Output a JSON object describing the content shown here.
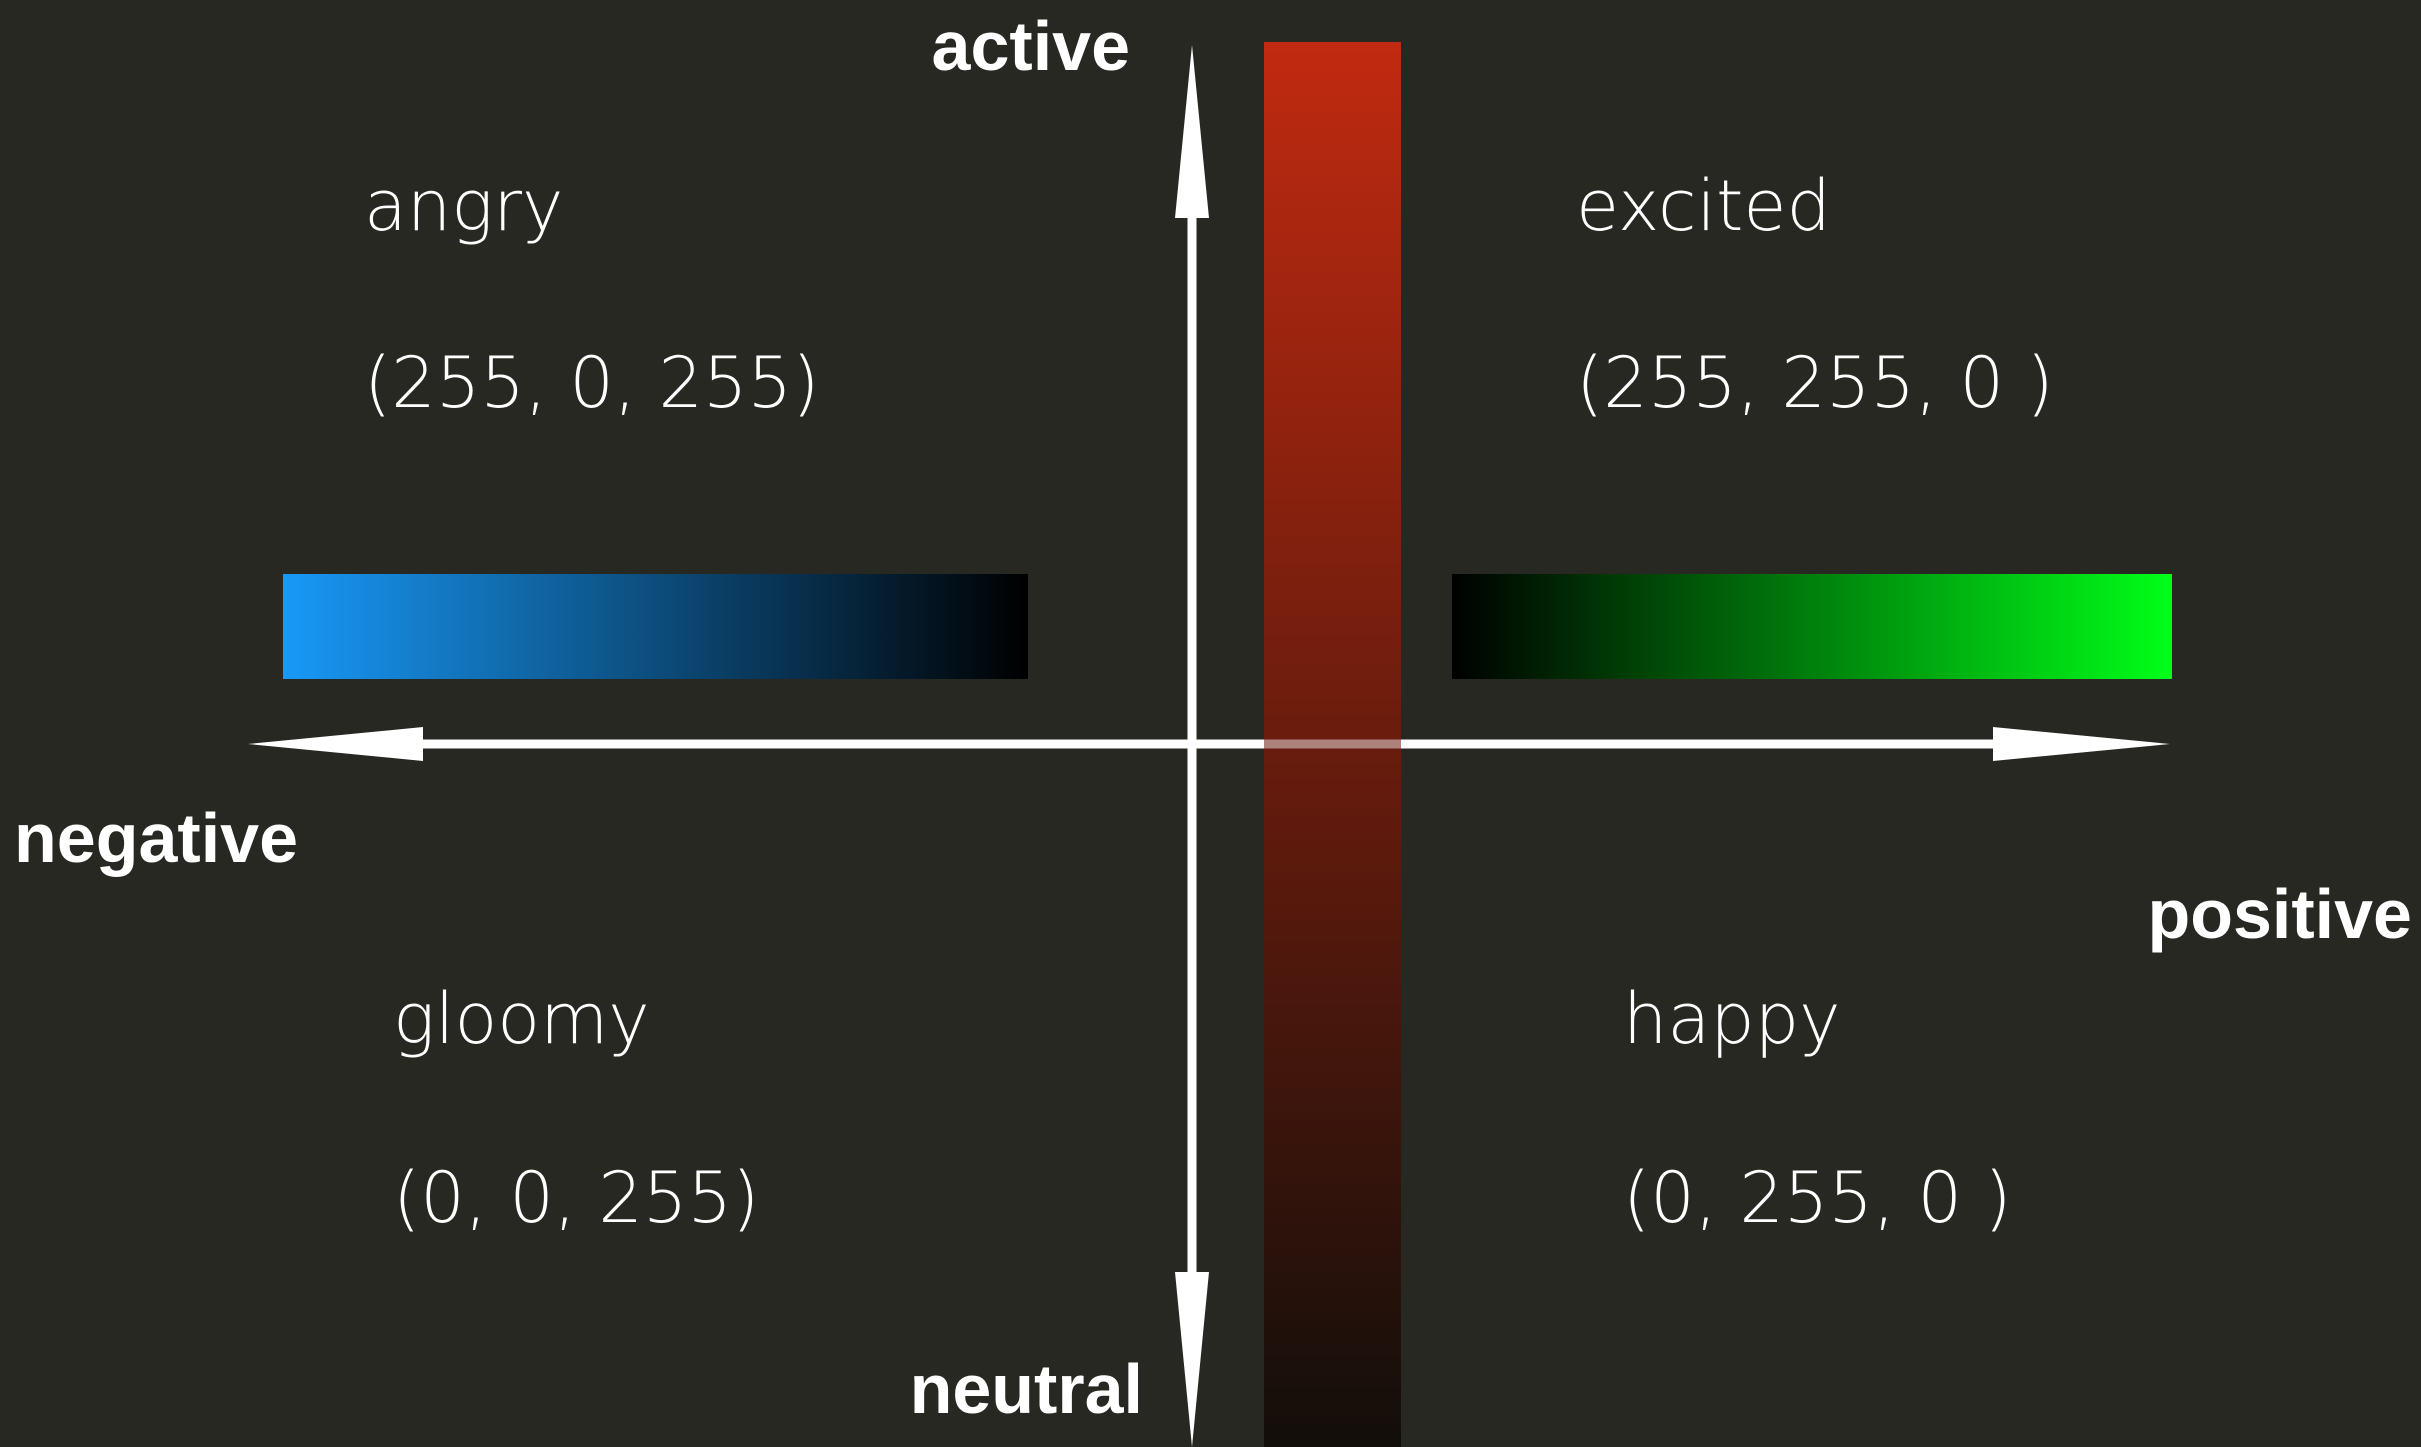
{
  "axes": {
    "top_label": "active",
    "bottom_label": "neutral",
    "left_label": "negative",
    "right_label": "positive"
  },
  "quadrants": {
    "top_left": {
      "emotion": "angry",
      "rgb": "(255, 0, 255)"
    },
    "top_right": {
      "emotion": "excited",
      "rgb": "(255, 255, 0 )"
    },
    "bottom_left": {
      "emotion": "gloomy",
      "rgb": "(0, 0, 255)"
    },
    "bottom_right": {
      "emotion": "happy",
      "rgb": "(0, 255, 0 )"
    }
  },
  "gradients": {
    "vertical_bar": {
      "from": "#c02a10",
      "to": "#120e0a"
    },
    "negative_bar": {
      "from": "#1899f8",
      "to": "#000000"
    },
    "positive_bar": {
      "from": "#000000",
      "to": "#00ff18"
    }
  },
  "colors": {
    "background": "#282822",
    "axis": "#ffffff",
    "text": "#ffffff"
  }
}
